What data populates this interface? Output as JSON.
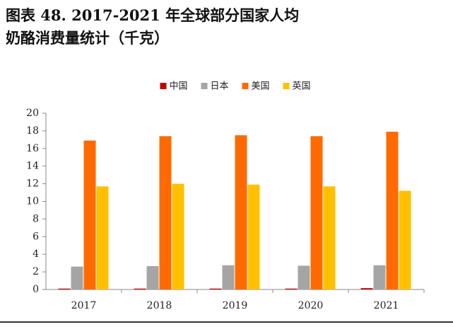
{
  "chart_data": {
    "type": "bar",
    "title": "图表 48. 2017-2021 年全球部分国家人均奶酪消费量统计（千克）",
    "categories": [
      "2017",
      "2018",
      "2019",
      "2020",
      "2021"
    ],
    "series": [
      {
        "name": "中国",
        "color": "#c00000",
        "values": [
          0.1,
          0.1,
          0.1,
          0.1,
          0.15
        ]
      },
      {
        "name": "日本",
        "color": "#a5a5a5",
        "values": [
          2.6,
          2.65,
          2.75,
          2.7,
          2.75
        ]
      },
      {
        "name": "美国",
        "color": "#ff6a00",
        "values": [
          16.9,
          17.4,
          17.5,
          17.4,
          17.9
        ]
      },
      {
        "name": "英国",
        "color": "#ffc000",
        "values": [
          11.7,
          12.0,
          11.9,
          11.7,
          11.2
        ]
      }
    ],
    "ylim": [
      0,
      20
    ],
    "yticks": [
      0,
      2,
      4,
      6,
      8,
      10,
      12,
      14,
      16,
      18,
      20
    ],
    "legend": "top"
  }
}
